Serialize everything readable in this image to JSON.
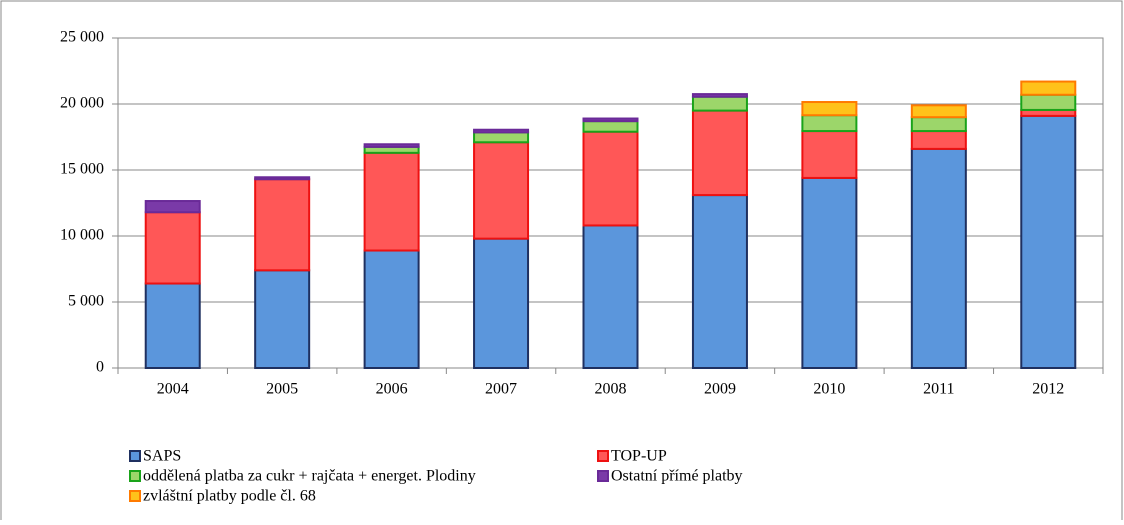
{
  "chart_data": {
    "type": "stacked_bar",
    "categories": [
      "2004",
      "2005",
      "2006",
      "2007",
      "2008",
      "2009",
      "2010",
      "2011",
      "2012"
    ],
    "series": [
      {
        "name": "SAPS",
        "color": "#5b96dc",
        "stroke": "#1f3060",
        "values": [
          6400,
          7400,
          8900,
          9800,
          10800,
          13100,
          14400,
          16600,
          19100
        ]
      },
      {
        "name": "TOP-UP",
        "color": "#ff5757",
        "stroke": "#ee1111",
        "values": [
          5400,
          6900,
          7400,
          7300,
          7100,
          6400,
          3550,
          1350,
          450
        ]
      },
      {
        "name": "oddělená platba za cukr + rajčata + energet. Plodiny",
        "color": "#9cd66a",
        "stroke": "#1aa31a",
        "values": [
          0,
          0,
          450,
          750,
          800,
          1050,
          1200,
          1050,
          1150
        ]
      },
      {
        "name": "Ostatní přímé platby",
        "color": "#7a3aa8",
        "stroke": "#6a2a98",
        "values": [
          850,
          150,
          200,
          200,
          200,
          200,
          0,
          0,
          0
        ]
      },
      {
        "name": "zvláštní platby podle čl. 68",
        "color": "#ffc21a",
        "stroke": "#ff7a00",
        "values": [
          0,
          0,
          0,
          0,
          0,
          0,
          1000,
          900,
          1000
        ]
      }
    ],
    "ylim": [
      0,
      25000
    ],
    "yticks": [
      0,
      {
        "value": 5000,
        "label": "5 000"
      },
      {
        "value": 10000,
        "label": "10 000"
      },
      {
        "value": 15000,
        "label": "15 000"
      },
      {
        "value": 20000,
        "label": "20 000"
      },
      {
        "value": 25000,
        "label": "25 000"
      }
    ],
    "grid": true
  }
}
